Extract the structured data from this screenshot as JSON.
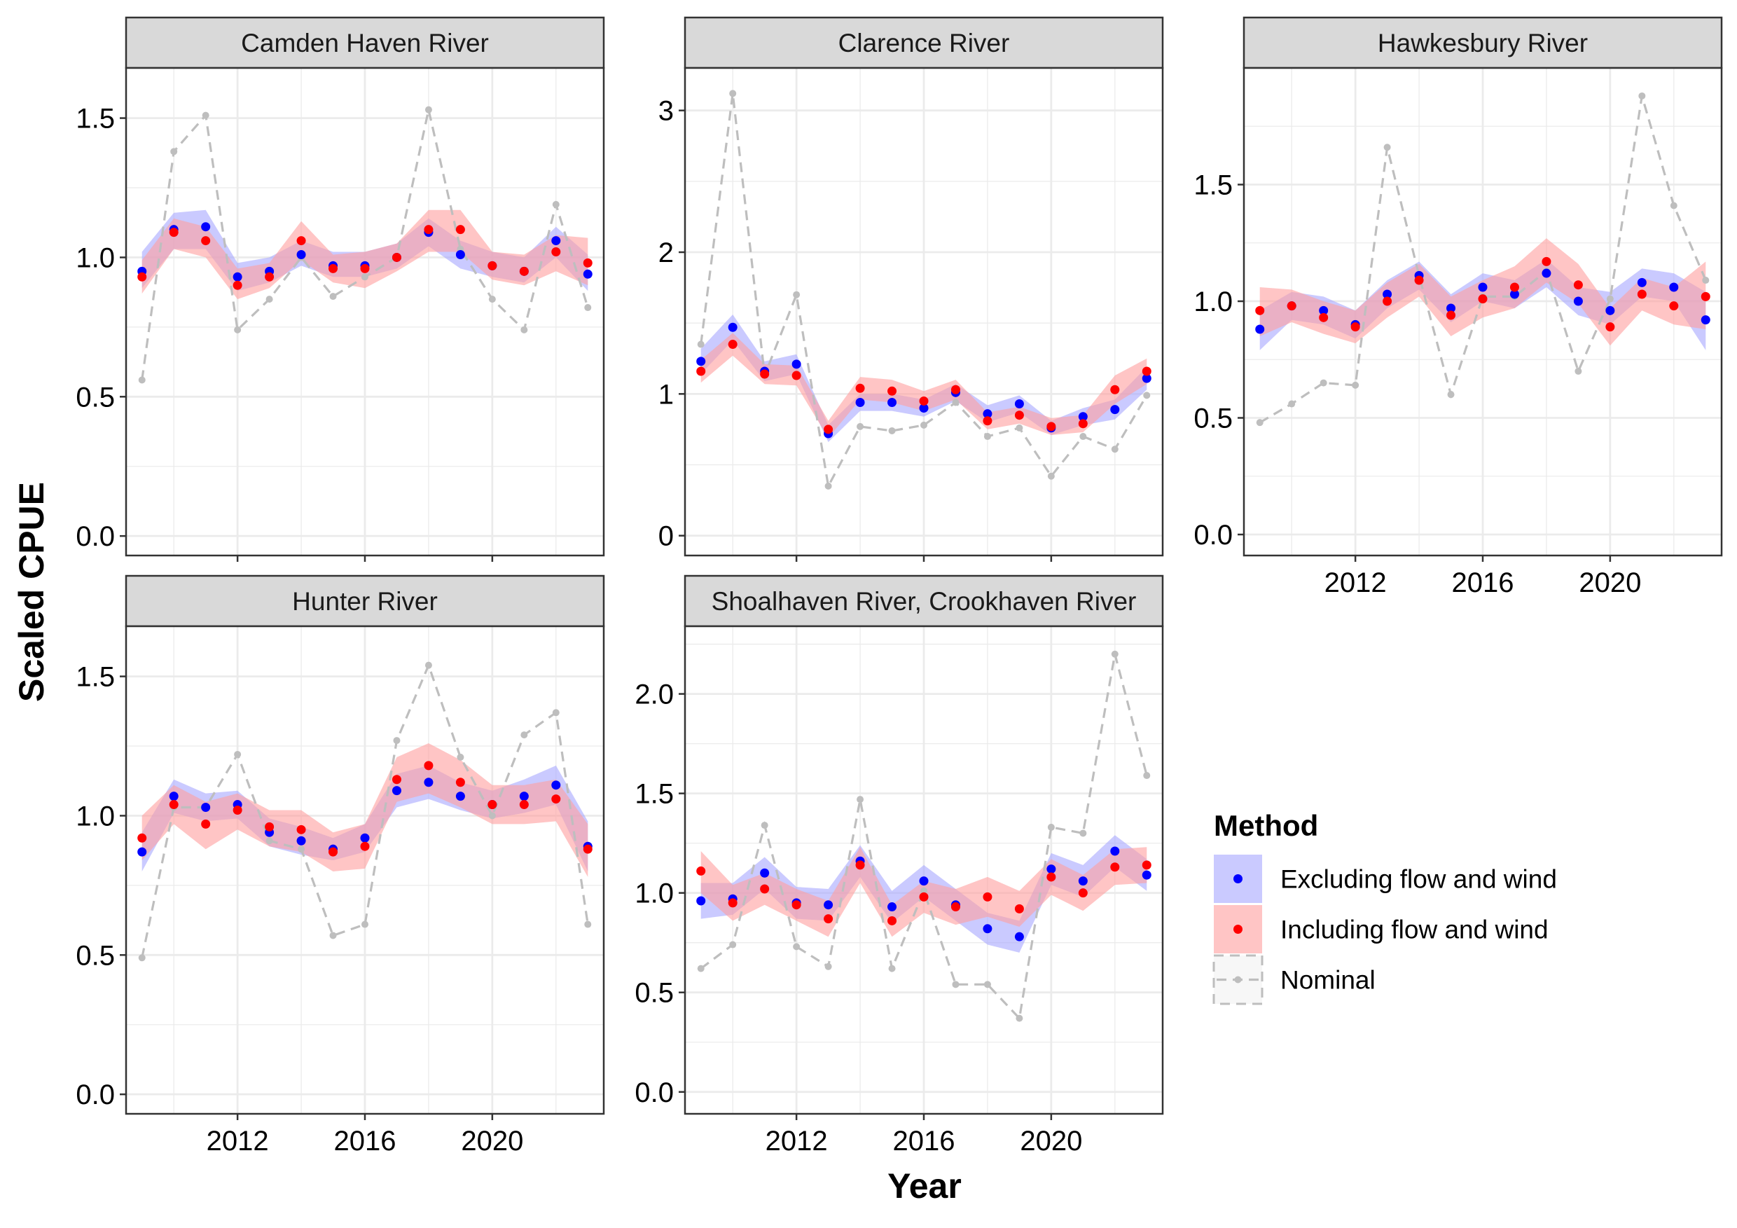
{
  "figure": {
    "ylabel": "Scaled CPUE",
    "xlabel": "Year",
    "x_ticks": [
      "2012",
      "2016",
      "2020"
    ]
  },
  "legend": {
    "title": "Method",
    "position": "right",
    "items": [
      {
        "label": "Excluding flow and wind",
        "kind": "excl"
      },
      {
        "label": "Including flow and wind",
        "kind": "incl"
      },
      {
        "label": "Nominal",
        "kind": "nom"
      }
    ]
  },
  "colors": {
    "excluding_point": "#0000FF",
    "excluding_band": "#A7A7FF",
    "including_point": "#FF0000",
    "including_band": "#FF9F9F",
    "nominal": "#BEBEBE",
    "strip_fill": "#D9D9D9",
    "grid_major": "#EBEBEB"
  },
  "chart_data": [
    {
      "type": "line",
      "title": "Camden Haven River",
      "xlim": [
        2008.5,
        2023.5
      ],
      "ylim": [
        -0.07,
        1.68
      ],
      "yticks": [
        0.0,
        0.5,
        1.0,
        1.5
      ],
      "ytick_labels": [
        "0.0",
        "0.5",
        "1.0",
        "1.5"
      ],
      "show_x_ticks": false,
      "x": [
        2009,
        2010,
        2011,
        2012,
        2013,
        2014,
        2015,
        2016,
        2017,
        2018,
        2019,
        2020,
        2021,
        2022,
        2023
      ],
      "series": [
        {
          "name": "Excluding flow and wind",
          "values": [
            0.95,
            1.1,
            1.11,
            0.93,
            0.95,
            1.01,
            0.97,
            0.97,
            1.0,
            1.09,
            1.01,
            0.97,
            0.95,
            1.06,
            0.94
          ],
          "lower": [
            0.89,
            1.03,
            1.03,
            0.88,
            0.91,
            0.97,
            0.93,
            0.93,
            0.96,
            1.04,
            0.96,
            0.93,
            0.91,
            1.0,
            0.88
          ],
          "upper": [
            1.02,
            1.16,
            1.17,
            0.98,
            1.0,
            1.06,
            1.02,
            1.02,
            1.05,
            1.14,
            1.06,
            1.02,
            1.0,
            1.11,
            1.01
          ]
        },
        {
          "name": "Including flow and wind",
          "values": [
            0.93,
            1.09,
            1.06,
            0.9,
            0.93,
            1.06,
            0.96,
            0.96,
            1.0,
            1.1,
            1.1,
            0.97,
            0.95,
            1.02,
            0.98
          ],
          "lower": [
            0.87,
            1.03,
            1.0,
            0.85,
            0.89,
            0.99,
            0.91,
            0.89,
            0.95,
            1.02,
            1.02,
            0.92,
            0.9,
            0.95,
            0.9
          ],
          "upper": [
            0.99,
            1.14,
            1.11,
            0.96,
            0.98,
            1.13,
            1.01,
            1.02,
            1.05,
            1.17,
            1.17,
            1.02,
            1.01,
            1.08,
            1.07
          ]
        },
        {
          "name": "Nominal",
          "values": [
            0.56,
            1.38,
            1.51,
            0.74,
            0.85,
            1.0,
            0.86,
            0.93,
            1.0,
            1.53,
            1.03,
            0.85,
            0.74,
            1.19,
            0.82
          ]
        }
      ]
    },
    {
      "type": "line",
      "title": "Clarence River",
      "xlim": [
        2008.5,
        2023.5
      ],
      "ylim": [
        -0.14,
        3.3
      ],
      "yticks": [
        0,
        1,
        2,
        3
      ],
      "ytick_labels": [
        "0",
        "1",
        "2",
        "3"
      ],
      "show_x_ticks": false,
      "x": [
        2009,
        2010,
        2011,
        2012,
        2013,
        2014,
        2015,
        2016,
        2017,
        2018,
        2019,
        2020,
        2021,
        2022,
        2023
      ],
      "series": [
        {
          "name": "Excluding flow and wind",
          "values": [
            1.23,
            1.47,
            1.16,
            1.21,
            0.72,
            0.94,
            0.94,
            0.9,
            1.01,
            0.86,
            0.93,
            0.76,
            0.84,
            0.89,
            1.11
          ],
          "lower": [
            1.14,
            1.38,
            1.09,
            1.14,
            0.66,
            0.88,
            0.88,
            0.84,
            0.95,
            0.8,
            0.87,
            0.71,
            0.78,
            0.82,
            1.03
          ],
          "upper": [
            1.32,
            1.56,
            1.23,
            1.28,
            0.78,
            1.0,
            1.0,
            0.96,
            1.07,
            0.92,
            0.99,
            0.81,
            0.9,
            0.96,
            1.19
          ]
        },
        {
          "name": "Including flow and wind",
          "values": [
            1.16,
            1.35,
            1.14,
            1.13,
            0.75,
            1.04,
            1.02,
            0.95,
            1.03,
            0.81,
            0.85,
            0.77,
            0.79,
            1.03,
            1.16
          ],
          "lower": [
            1.08,
            1.27,
            1.07,
            1.06,
            0.69,
            0.96,
            0.94,
            0.88,
            0.96,
            0.75,
            0.79,
            0.71,
            0.73,
            0.93,
            1.07
          ],
          "upper": [
            1.24,
            1.43,
            1.21,
            1.2,
            0.81,
            1.12,
            1.1,
            1.02,
            1.1,
            0.87,
            0.91,
            0.83,
            0.85,
            1.13,
            1.25
          ]
        },
        {
          "name": "Nominal",
          "values": [
            1.35,
            3.12,
            1.13,
            1.7,
            0.35,
            0.77,
            0.74,
            0.78,
            0.94,
            0.7,
            0.76,
            0.42,
            0.7,
            0.61,
            0.99
          ]
        }
      ]
    },
    {
      "type": "line",
      "title": "Hawkesbury River",
      "xlim": [
        2008.5,
        2023.5
      ],
      "ylim": [
        -0.09,
        2.0
      ],
      "yticks": [
        0.0,
        0.5,
        1.0,
        1.5
      ],
      "ytick_labels": [
        "0.0",
        "0.5",
        "1.0",
        "1.5"
      ],
      "show_x_ticks": true,
      "x": [
        2009,
        2010,
        2011,
        2012,
        2013,
        2014,
        2015,
        2016,
        2017,
        2018,
        2019,
        2020,
        2021,
        2022,
        2023
      ],
      "series": [
        {
          "name": "Excluding flow and wind",
          "values": [
            0.88,
            0.98,
            0.96,
            0.9,
            1.03,
            1.11,
            0.97,
            1.06,
            1.03,
            1.12,
            1.0,
            0.96,
            1.08,
            1.06,
            0.92
          ],
          "lower": [
            0.79,
            0.92,
            0.9,
            0.84,
            0.97,
            1.05,
            0.91,
            1.0,
            0.97,
            1.06,
            0.94,
            0.9,
            1.02,
            1.0,
            0.79
          ],
          "upper": [
            0.96,
            1.04,
            1.02,
            0.96,
            1.09,
            1.17,
            1.03,
            1.12,
            1.09,
            1.18,
            1.06,
            1.04,
            1.14,
            1.12,
            1.04
          ]
        },
        {
          "name": "Including flow and wind",
          "values": [
            0.96,
            0.98,
            0.93,
            0.89,
            1.0,
            1.09,
            0.94,
            1.01,
            1.06,
            1.17,
            1.07,
            0.89,
            1.03,
            0.98,
            1.02
          ],
          "lower": [
            0.85,
            0.91,
            0.86,
            0.82,
            0.93,
            1.02,
            0.85,
            0.93,
            0.97,
            1.08,
            0.99,
            0.81,
            0.96,
            0.9,
            0.88
          ],
          "upper": [
            1.06,
            1.05,
            1.0,
            0.96,
            1.08,
            1.16,
            1.02,
            1.09,
            1.15,
            1.27,
            1.16,
            0.97,
            1.1,
            1.06,
            1.17
          ]
        },
        {
          "name": "Nominal",
          "values": [
            0.48,
            0.56,
            0.65,
            0.64,
            1.66,
            1.11,
            0.6,
            1.02,
            1.02,
            1.13,
            0.7,
            1.01,
            1.88,
            1.41,
            1.09
          ]
        }
      ]
    },
    {
      "type": "line",
      "title": "Hunter River",
      "xlim": [
        2008.5,
        2023.5
      ],
      "ylim": [
        -0.07,
        1.68
      ],
      "yticks": [
        0.0,
        0.5,
        1.0,
        1.5
      ],
      "ytick_labels": [
        "0.0",
        "0.5",
        "1.0",
        "1.5"
      ],
      "show_x_ticks": true,
      "x": [
        2009,
        2010,
        2011,
        2012,
        2013,
        2014,
        2015,
        2016,
        2017,
        2018,
        2019,
        2020,
        2021,
        2022,
        2023
      ],
      "series": [
        {
          "name": "Excluding flow and wind",
          "values": [
            0.87,
            1.07,
            1.03,
            1.04,
            0.94,
            0.91,
            0.88,
            0.92,
            1.09,
            1.12,
            1.07,
            1.04,
            1.07,
            1.11,
            0.89
          ],
          "lower": [
            0.8,
            1.01,
            0.98,
            0.99,
            0.89,
            0.86,
            0.84,
            0.87,
            1.03,
            1.06,
            1.02,
            0.99,
            1.01,
            1.04,
            0.8
          ],
          "upper": [
            0.94,
            1.13,
            1.08,
            1.09,
            0.99,
            0.96,
            0.92,
            0.97,
            1.15,
            1.18,
            1.12,
            1.09,
            1.13,
            1.18,
            0.98
          ]
        },
        {
          "name": "Including flow and wind",
          "values": [
            0.92,
            1.04,
            0.97,
            1.02,
            0.96,
            0.95,
            0.87,
            0.89,
            1.13,
            1.18,
            1.12,
            1.04,
            1.04,
            1.06,
            0.88
          ],
          "lower": [
            0.84,
            0.97,
            0.88,
            0.95,
            0.89,
            0.87,
            0.8,
            0.81,
            1.05,
            1.08,
            1.03,
            0.97,
            0.97,
            0.98,
            0.78
          ],
          "upper": [
            1.0,
            1.11,
            1.05,
            1.08,
            1.02,
            1.02,
            0.94,
            0.97,
            1.21,
            1.26,
            1.2,
            1.11,
            1.11,
            1.13,
            0.97
          ]
        },
        {
          "name": "Nominal",
          "values": [
            0.49,
            1.03,
            1.03,
            1.22,
            0.91,
            0.88,
            0.57,
            0.61,
            1.27,
            1.54,
            1.21,
            1.0,
            1.29,
            1.37,
            0.61
          ]
        }
      ]
    },
    {
      "type": "line",
      "title": "Shoalhaven River, Crookhaven River",
      "xlim": [
        2008.5,
        2023.5
      ],
      "ylim": [
        -0.11,
        2.34
      ],
      "yticks": [
        0.0,
        0.5,
        1.0,
        1.5,
        2.0
      ],
      "ytick_labels": [
        "0.0",
        "0.5",
        "1.0",
        "1.5",
        "2.0"
      ],
      "show_x_ticks": true,
      "x": [
        2009,
        2010,
        2011,
        2012,
        2013,
        2014,
        2015,
        2016,
        2017,
        2018,
        2019,
        2020,
        2021,
        2022,
        2023
      ],
      "series": [
        {
          "name": "Excluding flow and wind",
          "values": [
            0.96,
            0.97,
            1.1,
            0.95,
            0.94,
            1.16,
            0.93,
            1.06,
            0.94,
            0.82,
            0.78,
            1.12,
            1.06,
            1.21,
            1.09
          ],
          "lower": [
            0.87,
            0.89,
            1.02,
            0.87,
            0.86,
            1.08,
            0.85,
            0.98,
            0.86,
            0.74,
            0.7,
            1.04,
            0.98,
            1.13,
            1.01
          ],
          "upper": [
            1.05,
            1.05,
            1.18,
            1.03,
            1.02,
            1.24,
            1.01,
            1.14,
            1.02,
            0.9,
            0.86,
            1.2,
            1.14,
            1.29,
            1.17
          ]
        },
        {
          "name": "Including flow and wind",
          "values": [
            1.11,
            0.95,
            1.02,
            0.94,
            0.87,
            1.14,
            0.86,
            0.98,
            0.93,
            0.98,
            0.92,
            1.08,
            1.0,
            1.13,
            1.14
          ],
          "lower": [
            1.0,
            0.86,
            0.94,
            0.86,
            0.78,
            1.05,
            0.78,
            0.9,
            0.84,
            0.88,
            0.83,
            0.99,
            0.91,
            1.04,
            1.05
          ],
          "upper": [
            1.21,
            1.04,
            1.1,
            1.02,
            0.96,
            1.23,
            0.94,
            1.06,
            1.02,
            1.08,
            1.01,
            1.17,
            1.09,
            1.22,
            1.23
          ]
        },
        {
          "name": "Nominal",
          "values": [
            0.62,
            0.74,
            1.34,
            0.73,
            0.63,
            1.47,
            0.62,
            1.01,
            0.54,
            0.54,
            0.37,
            1.33,
            1.3,
            2.2,
            1.59
          ]
        }
      ]
    }
  ]
}
